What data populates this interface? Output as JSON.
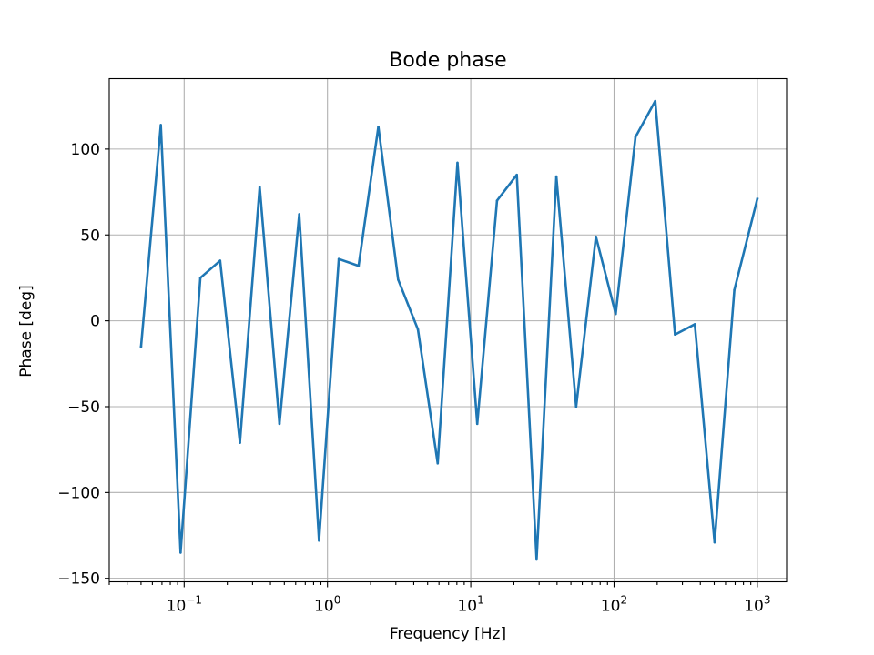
{
  "chart_data": {
    "type": "line",
    "title": "Bode phase",
    "xlabel": "Frequency [Hz]",
    "ylabel": "Phase [deg]",
    "xscale": "log",
    "xlim": [
      0.03,
      1600
    ],
    "ylim": [
      -152,
      141
    ],
    "grid": true,
    "x_ticks": [
      {
        "value": 0.1,
        "base": "10",
        "exp": "−1"
      },
      {
        "value": 1,
        "base": "10",
        "exp": "0"
      },
      {
        "value": 10,
        "base": "10",
        "exp": "1"
      },
      {
        "value": 100,
        "base": "10",
        "exp": "2"
      },
      {
        "value": 1000,
        "base": "10",
        "exp": "3"
      }
    ],
    "y_ticks": [
      {
        "value": -150,
        "label": "−150"
      },
      {
        "value": -100,
        "label": "−100"
      },
      {
        "value": -50,
        "label": "−50"
      },
      {
        "value": 0,
        "label": "0"
      },
      {
        "value": 50,
        "label": "50"
      },
      {
        "value": 100,
        "label": "100"
      }
    ],
    "series": [
      {
        "color": "#1f77b4",
        "x": [
          0.05,
          0.0687,
          0.0944,
          0.1297,
          0.1782,
          0.2449,
          0.3365,
          0.4624,
          0.6354,
          0.8731,
          1.1998,
          1.6487,
          2.2655,
          3.1131,
          4.2778,
          5.8782,
          8.0774,
          11.0993,
          15.2519,
          20.958,
          28.7989,
          39.5734,
          54.3785,
          74.7226,
          102.678,
          141.093,
          193.878,
          266.412,
          366.09,
          503.05,
          691.25,
          1000
        ],
        "y": [
          -15,
          114,
          -135,
          25,
          35,
          -71,
          78,
          -60,
          62,
          -128,
          36,
          32,
          113,
          24,
          -5,
          -83,
          92,
          -60,
          70,
          85,
          -139,
          84,
          -50,
          49,
          4,
          107,
          128,
          -8,
          -2,
          -129,
          18,
          71
        ]
      }
    ]
  }
}
